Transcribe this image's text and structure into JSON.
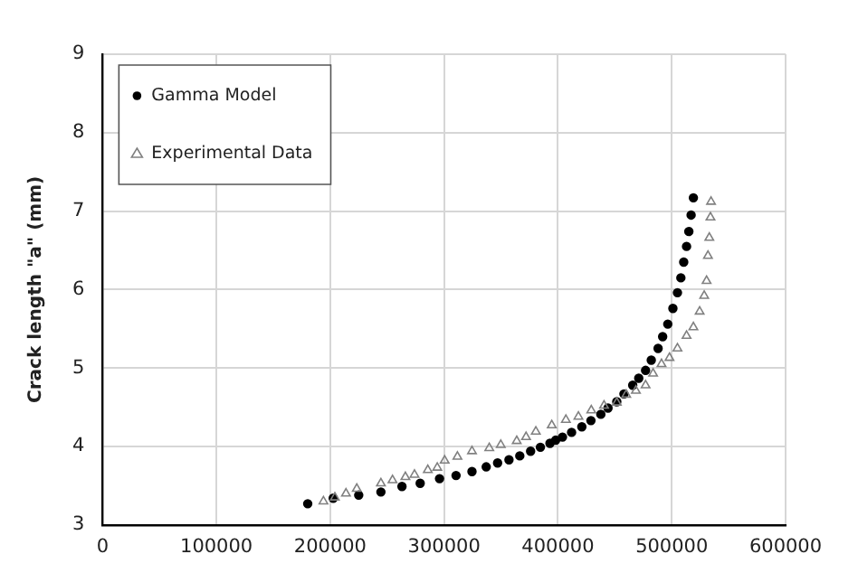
{
  "chart_data": {
    "type": "scatter",
    "ylabel": "Crack length \"a\" (mm)",
    "xlim": [
      0,
      600000
    ],
    "xticks": [
      0,
      100000,
      200000,
      300000,
      400000,
      500000,
      600000
    ],
    "ylim": [
      3,
      9
    ],
    "yticks": [
      3,
      4,
      5,
      6,
      7,
      8,
      9
    ],
    "grid": true,
    "legend": "top left",
    "series": [
      {
        "name": "Gamma Model",
        "color": "#000000",
        "marker": "circle",
        "x": [
          180200,
          202600,
          225000,
          244500,
          263000,
          279000,
          296000,
          310500,
          324500,
          337000,
          347000,
          357000,
          366500,
          376000,
          384600,
          393000,
          398000,
          404000,
          412000,
          421000,
          429000,
          437700,
          444000,
          451700,
          458000,
          465700,
          471000,
          477000,
          482000,
          488000,
          492000,
          496500,
          501000,
          505000,
          508000,
          510500,
          513000,
          515000,
          517000,
          519000
        ],
        "values": [
          3.27,
          3.34,
          3.38,
          3.42,
          3.49,
          3.53,
          3.59,
          3.63,
          3.68,
          3.74,
          3.79,
          3.83,
          3.88,
          3.94,
          3.99,
          4.04,
          4.08,
          4.12,
          4.18,
          4.25,
          4.33,
          4.41,
          4.49,
          4.57,
          4.67,
          4.78,
          4.87,
          4.97,
          5.1,
          5.25,
          5.4,
          5.56,
          5.76,
          5.96,
          6.15,
          6.35,
          6.55,
          6.74,
          6.95,
          7.17
        ]
      },
      {
        "name": "Experimental Data",
        "color": "#808080",
        "marker": "triangle",
        "x": [
          194000,
          204000,
          213800,
          223300,
          244500,
          254700,
          266000,
          274000,
          285700,
          294000,
          300500,
          311700,
          324500,
          339700,
          349800,
          363800,
          372000,
          380600,
          394600,
          407000,
          418000,
          429300,
          440500,
          451700,
          460000,
          468500,
          477000,
          483600,
          491000,
          498000,
          505000,
          513000,
          519000,
          524500,
          528500,
          530600,
          531800,
          533000,
          534000,
          534500
        ],
        "values": [
          3.3,
          3.35,
          3.4,
          3.46,
          3.53,
          3.57,
          3.61,
          3.64,
          3.7,
          3.73,
          3.82,
          3.87,
          3.94,
          3.98,
          4.02,
          4.07,
          4.12,
          4.19,
          4.27,
          4.34,
          4.38,
          4.46,
          4.52,
          4.56,
          4.66,
          4.71,
          4.78,
          4.93,
          5.05,
          5.13,
          5.25,
          5.41,
          5.52,
          5.72,
          5.92,
          6.11,
          6.43,
          6.66,
          6.92,
          7.12
        ]
      }
    ]
  }
}
